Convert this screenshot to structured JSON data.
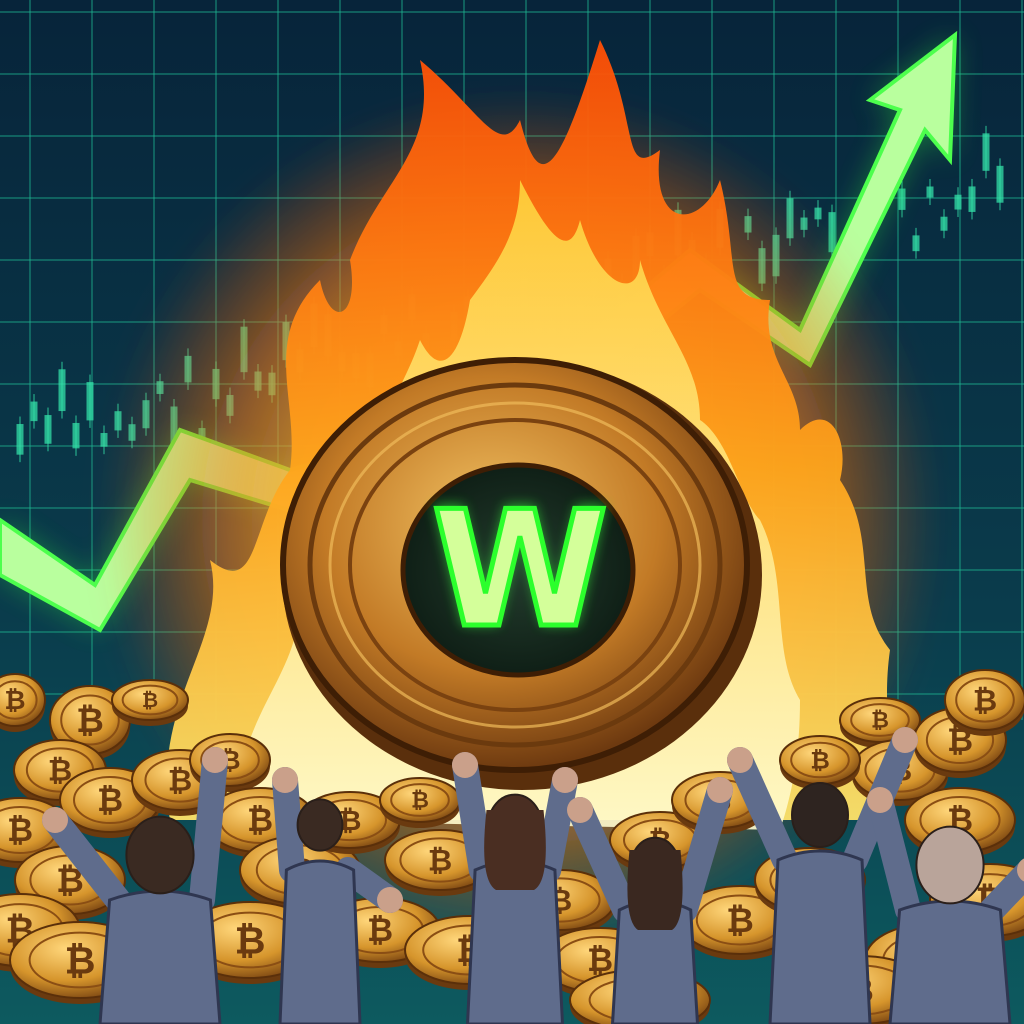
{
  "scene": {
    "description_free": true,
    "palette": {
      "background_top": "#07243a",
      "background_bottom": "#0b4a57",
      "grid": "#1fb58f",
      "candles": "#33e0a8",
      "arrow_fill": "#b9ff9e",
      "arrow_glow": "#35ff3a",
      "flame_outer": "#ff5a0a",
      "flame_mid": "#ffb21a",
      "flame_core": "#fff27a",
      "coin_gold": "#d99a2b",
      "coin_dark": "#7a4210",
      "coin_face": "#1c3327",
      "w_letter": "#ccff8a",
      "w_glow": "#2cff2c",
      "people_shirt": "#5f6c8c",
      "people_hair": "#3a2a22",
      "people_skin": "#caa08a"
    }
  },
  "coin": {
    "letter": "W",
    "icon": "glowing-w-coin"
  },
  "small_coins": {
    "symbol": "₿",
    "icon": "bitcoin-coin"
  },
  "chart_motif": {
    "trend": "rising",
    "icon": "up-arrow"
  },
  "crowd": {
    "count": 6,
    "pose": "cheering-arms-raised"
  }
}
